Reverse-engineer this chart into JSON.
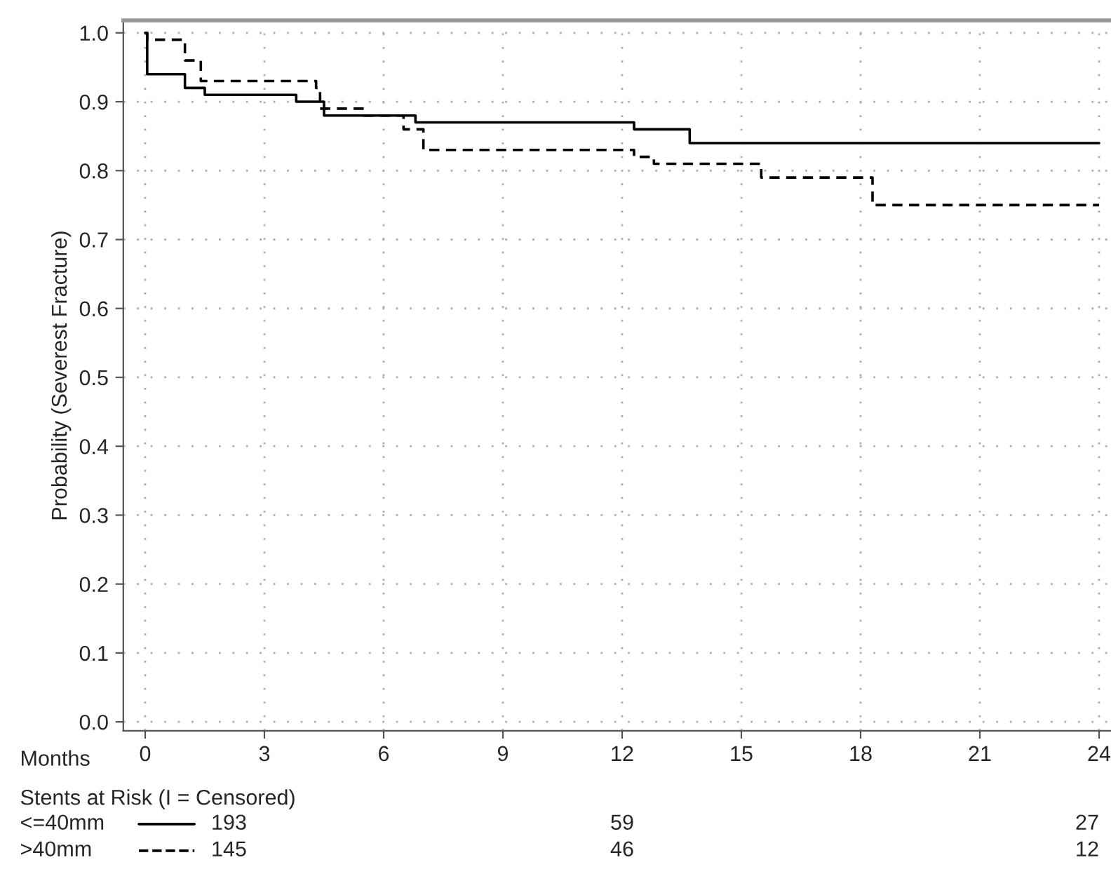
{
  "chart_data": {
    "type": "step",
    "ylabel": "Probability (Severest Fracture)",
    "xlabel": "Months",
    "xlim": [
      -0.55,
      24.3
    ],
    "ylim": [
      -0.013,
      1.018
    ],
    "xticks": [
      0,
      3,
      6,
      9,
      12,
      15,
      18,
      21,
      24
    ],
    "yticks": [
      {
        "value": 0,
        "label": "0.0"
      },
      0.1,
      0.2,
      0.3,
      0.4,
      0.5,
      0.6,
      0.7,
      0.8,
      0.9,
      {
        "value": 1,
        "label": "1.0"
      }
    ],
    "grid": true,
    "legend": "bottom left",
    "marker": "none",
    "series": [
      {
        "name": "<=40mm",
        "color": "#000000",
        "line_style": "solid",
        "x": [
          0,
          0.05,
          1.0,
          1.5,
          3.8,
          4.5,
          6.8,
          12.3,
          13.7,
          24.0
        ],
        "values": [
          1.0,
          0.94,
          0.92,
          0.91,
          0.9,
          0.88,
          0.87,
          0.86,
          0.84,
          0.84
        ]
      },
      {
        "name": ">40mm",
        "color": "#000000",
        "line_style": "dashed",
        "x": [
          0,
          0.05,
          1.0,
          1.4,
          4.3,
          4.4,
          5.5,
          6.5,
          7.0,
          12.3,
          12.8,
          15.5,
          18.3,
          24.0
        ],
        "values": [
          1.0,
          0.99,
          0.96,
          0.93,
          0.92,
          0.89,
          0.88,
          0.86,
          0.83,
          0.82,
          0.81,
          0.79,
          0.75,
          0.75
        ]
      }
    ],
    "annotations": [
      "Stents at Risk (I = Censored)",
      "193",
      "59",
      "27",
      "145",
      "46",
      "12"
    ]
  }
}
